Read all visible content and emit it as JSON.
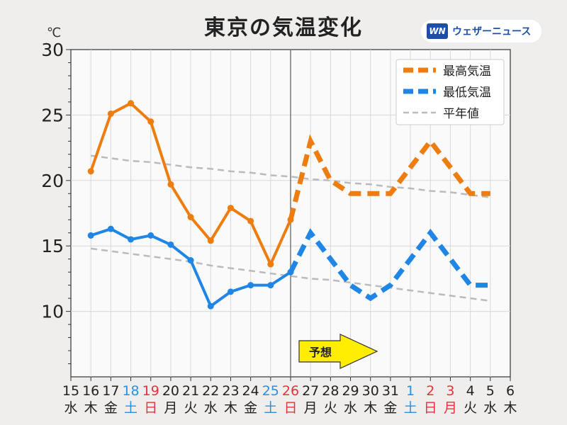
{
  "title": "東京の気温変化",
  "unit": "℃",
  "brand": {
    "logo": "WN",
    "name": "ウェザーニュース"
  },
  "colors": {
    "high": "#ee7d10",
    "low": "#1f86e6",
    "normal": "#bbbbbb",
    "weekday": "#222222",
    "saturday": "#2b8fe0",
    "sunday": "#e0343c",
    "forecast_arrow": "#ffee00"
  },
  "forecast_label": "予想",
  "chart_data": {
    "type": "line",
    "x": [
      "15",
      "16",
      "17",
      "18",
      "19",
      "20",
      "21",
      "22",
      "23",
      "24",
      "25",
      "26",
      "27",
      "28",
      "29",
      "30",
      "31",
      "1",
      "2",
      "3",
      "4",
      "5",
      "6"
    ],
    "weekdays": [
      "水",
      "木",
      "金",
      "土",
      "日",
      "月",
      "火",
      "水",
      "木",
      "金",
      "土",
      "日",
      "月",
      "火",
      "水",
      "木",
      "金",
      "土",
      "日",
      "月",
      "火",
      "水",
      "木"
    ],
    "day_types": [
      "w",
      "w",
      "w",
      "sat",
      "sun",
      "w",
      "w",
      "w",
      "w",
      "w",
      "sat",
      "sun",
      "w",
      "w",
      "w",
      "w",
      "w",
      "sat",
      "sun",
      "sun",
      "w",
      "w",
      "w"
    ],
    "ylim": [
      5,
      30
    ],
    "yticks": [
      10,
      15,
      20,
      25,
      30
    ],
    "grid": true,
    "forecast_start_index": 11,
    "legend": {
      "placement": "top-right",
      "entries": [
        "最高気温",
        "最低気温",
        "平年値"
      ]
    },
    "series": [
      {
        "name": "最高気温",
        "key": "high",
        "values": [
          null,
          20.7,
          25.1,
          25.9,
          24.5,
          19.7,
          17.2,
          15.4,
          17.9,
          16.9,
          13.6,
          17.0,
          23.0,
          20.0,
          19.0,
          19.0,
          19.0,
          21.0,
          23.0,
          21.0,
          19.0,
          19.0,
          null
        ]
      },
      {
        "name": "最低気温",
        "key": "low",
        "values": [
          null,
          15.8,
          16.3,
          15.5,
          15.8,
          15.1,
          13.9,
          10.4,
          11.5,
          12.0,
          12.0,
          13.0,
          16.0,
          14.0,
          12.0,
          11.0,
          12.0,
          14.0,
          16.0,
          14.0,
          12.0,
          12.0,
          null
        ]
      },
      {
        "name": "平年値",
        "key": "normal_high",
        "values": [
          null,
          21.9,
          21.7,
          21.5,
          21.4,
          21.2,
          21.0,
          20.9,
          20.7,
          20.6,
          20.4,
          20.3,
          20.1,
          20.0,
          19.8,
          19.7,
          19.5,
          19.4,
          19.2,
          19.1,
          18.9,
          18.7,
          null
        ]
      },
      {
        "name": "平年値",
        "key": "normal_low",
        "values": [
          null,
          14.8,
          14.6,
          14.4,
          14.2,
          14.0,
          13.8,
          13.5,
          13.3,
          13.1,
          12.9,
          12.7,
          12.5,
          12.4,
          12.2,
          12.0,
          11.8,
          11.6,
          11.4,
          11.2,
          11.0,
          10.8,
          null
        ]
      }
    ]
  }
}
